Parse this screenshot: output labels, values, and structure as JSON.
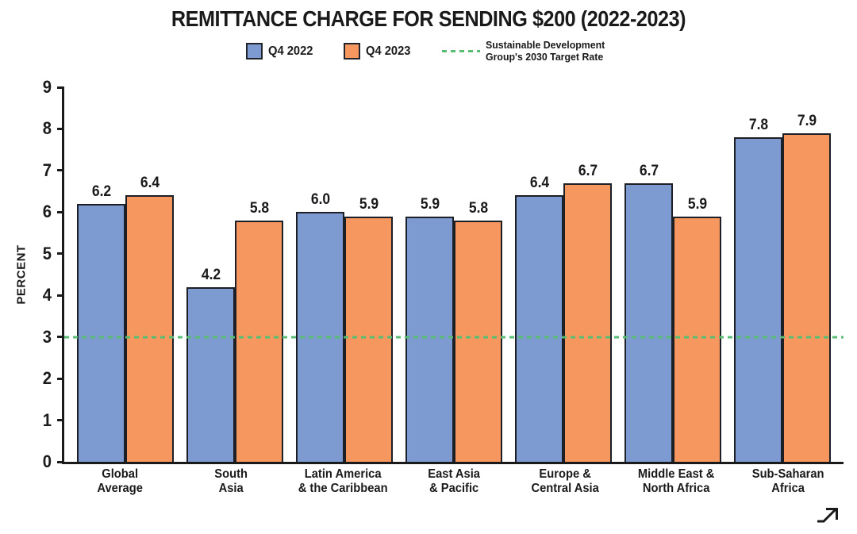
{
  "chart_data": {
    "type": "bar",
    "title": "REMITTANCE CHARGE FOR SENDING $200 (2022-2023)",
    "categories": [
      "Global\nAverage",
      "South\nAsia",
      "Latin America\n& the Caribbean",
      "East Asia\n& Pacific",
      "Europe &\nCentral Asia",
      "Middle East &\nNorth Africa",
      "Sub-Saharan\nAfrica"
    ],
    "series": [
      {
        "name": "Q4 2022",
        "color": "#7E9BD1",
        "values": [
          6.2,
          4.2,
          6.0,
          5.9,
          6.4,
          6.7,
          7.8
        ]
      },
      {
        "name": "Q4 2023",
        "color": "#F6975F",
        "values": [
          6.4,
          5.8,
          5.9,
          5.8,
          6.7,
          5.9,
          7.9
        ]
      }
    ],
    "ylabel": "PERCENT",
    "xlabel": "",
    "ylim": [
      0,
      9
    ],
    "yticks": [
      0,
      1,
      2,
      3,
      4,
      5,
      6,
      7,
      8,
      9
    ],
    "grid": false,
    "legend_position": "top",
    "value_label_decimals": 1,
    "target_line": {
      "value": 3,
      "color": "#56BD72",
      "label": "Sustainable Development\nGroup's 2030 Target Rate"
    }
  },
  "colors": {
    "axis": "#1a1a1a",
    "text": "#1a1a1a",
    "bar_outline": "#1d1f26"
  },
  "icons": {
    "corner_arrow": "arrow-up-right"
  }
}
